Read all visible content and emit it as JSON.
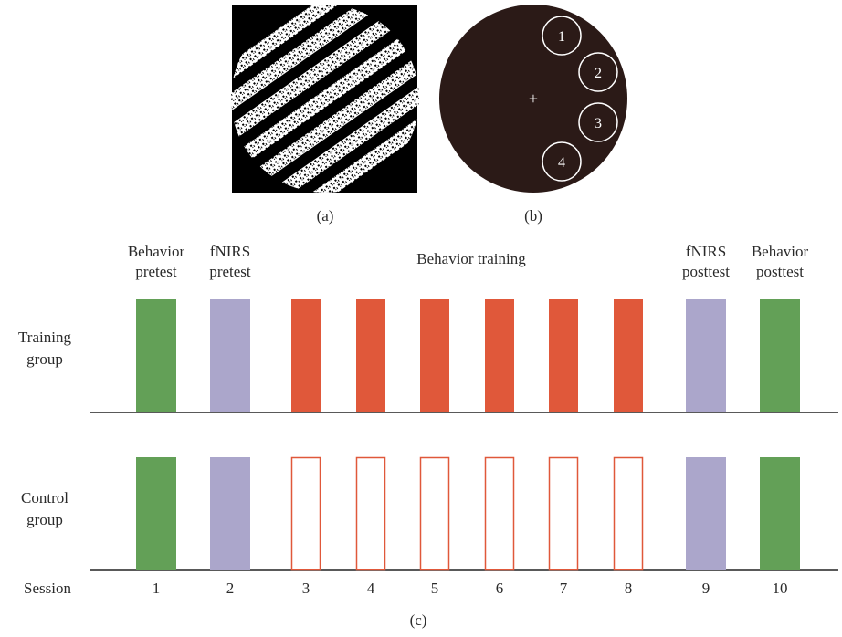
{
  "panel_a": {
    "label": "(a)",
    "stimulus": "black square containing a circular patch of diagonal white noise-textured stripes (grating)"
  },
  "panel_b": {
    "label": "(b)",
    "fixation": "+",
    "positions": [
      "1",
      "2",
      "3",
      "4"
    ],
    "background_color": "#2b1a17"
  },
  "panel_c": {
    "label": "(c)",
    "header_labels": {
      "behavior_pretest": [
        "Behavior",
        "pretest"
      ],
      "fnirs_pretest": [
        "fNIRS",
        "pretest"
      ],
      "behavior_training": "Behavior training",
      "fnirs_posttest": [
        "fNIRS",
        "posttest"
      ],
      "behavior_posttest": [
        "Behavior",
        "posttest"
      ]
    },
    "row_labels": {
      "training": [
        "Training",
        "group"
      ],
      "control": [
        "Control",
        "group"
      ]
    },
    "session_label": "Session",
    "sessions": [
      {
        "n": "1",
        "training": "behavior",
        "control": "behavior"
      },
      {
        "n": "2",
        "training": "fnirs",
        "control": "fnirs"
      },
      {
        "n": "3",
        "training": "train",
        "control": "none"
      },
      {
        "n": "4",
        "training": "train",
        "control": "none"
      },
      {
        "n": "5",
        "training": "train",
        "control": "none"
      },
      {
        "n": "6",
        "training": "train",
        "control": "none"
      },
      {
        "n": "7",
        "training": "train",
        "control": "none"
      },
      {
        "n": "8",
        "training": "train",
        "control": "none"
      },
      {
        "n": "9",
        "training": "fnirs",
        "control": "fnirs"
      },
      {
        "n": "10",
        "training": "behavior",
        "control": "behavior"
      }
    ],
    "colors": {
      "behavior": "#63a057",
      "fnirs": "#aba6cb",
      "train": "#e0583a",
      "none_outline": "#e0583a"
    }
  }
}
